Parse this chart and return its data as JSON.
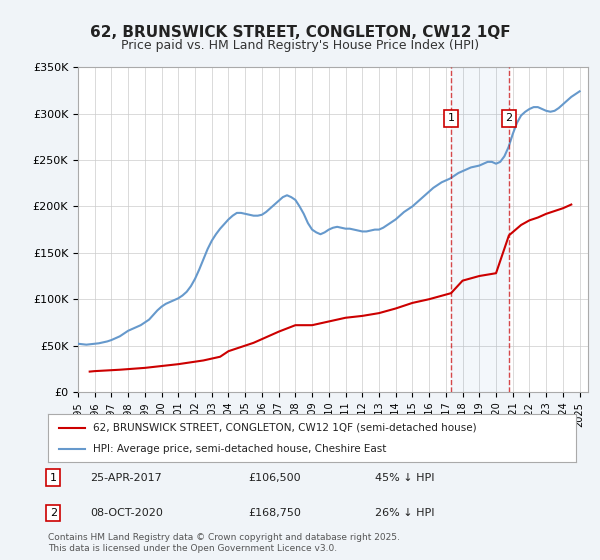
{
  "title": "62, BRUNSWICK STREET, CONGLETON, CW12 1QF",
  "subtitle": "Price paid vs. HM Land Registry's House Price Index (HPI)",
  "ylabel_ticks": [
    "£0",
    "£50K",
    "£100K",
    "£150K",
    "£200K",
    "£250K",
    "£300K",
    "£350K"
  ],
  "ylim": [
    0,
    350000
  ],
  "xlim_start": 1995.0,
  "xlim_end": 2025.5,
  "legend_line1": "62, BRUNSWICK STREET, CONGLETON, CW12 1QF (semi-detached house)",
  "legend_line2": "HPI: Average price, semi-detached house, Cheshire East",
  "marker1_date": "25-APR-2017",
  "marker1_price": "£106,500",
  "marker1_hpi": "45% ↓ HPI",
  "marker1_year": 2017.31,
  "marker2_date": "08-OCT-2020",
  "marker2_price": "£168,750",
  "marker2_hpi": "26% ↓ HPI",
  "marker2_year": 2020.77,
  "red_color": "#cc0000",
  "blue_color": "#6699cc",
  "footer": "Contains HM Land Registry data © Crown copyright and database right 2025.\nThis data is licensed under the Open Government Licence v3.0.",
  "background_color": "#f0f4f8",
  "plot_bg_color": "#ffffff",
  "grid_color": "#cccccc",
  "hpi_data_x": [
    1995.0,
    1995.25,
    1995.5,
    1995.75,
    1996.0,
    1996.25,
    1996.5,
    1996.75,
    1997.0,
    1997.25,
    1997.5,
    1997.75,
    1998.0,
    1998.25,
    1998.5,
    1998.75,
    1999.0,
    1999.25,
    1999.5,
    1999.75,
    2000.0,
    2000.25,
    2000.5,
    2000.75,
    2001.0,
    2001.25,
    2001.5,
    2001.75,
    2002.0,
    2002.25,
    2002.5,
    2002.75,
    2003.0,
    2003.25,
    2003.5,
    2003.75,
    2004.0,
    2004.25,
    2004.5,
    2004.75,
    2005.0,
    2005.25,
    2005.5,
    2005.75,
    2006.0,
    2006.25,
    2006.5,
    2006.75,
    2007.0,
    2007.25,
    2007.5,
    2007.75,
    2008.0,
    2008.25,
    2008.5,
    2008.75,
    2009.0,
    2009.25,
    2009.5,
    2009.75,
    2010.0,
    2010.25,
    2010.5,
    2010.75,
    2011.0,
    2011.25,
    2011.5,
    2011.75,
    2012.0,
    2012.25,
    2012.5,
    2012.75,
    2013.0,
    2013.25,
    2013.5,
    2013.75,
    2014.0,
    2014.25,
    2014.5,
    2014.75,
    2015.0,
    2015.25,
    2015.5,
    2015.75,
    2016.0,
    2016.25,
    2016.5,
    2016.75,
    2017.0,
    2017.25,
    2017.5,
    2017.75,
    2018.0,
    2018.25,
    2018.5,
    2018.75,
    2019.0,
    2019.25,
    2019.5,
    2019.75,
    2020.0,
    2020.25,
    2020.5,
    2020.75,
    2021.0,
    2021.25,
    2021.5,
    2021.75,
    2022.0,
    2022.25,
    2022.5,
    2022.75,
    2023.0,
    2023.25,
    2023.5,
    2023.75,
    2024.0,
    2024.25,
    2024.5,
    2024.75,
    2025.0
  ],
  "hpi_data_y": [
    52000,
    51500,
    51000,
    51500,
    52000,
    52500,
    53500,
    54500,
    56000,
    58000,
    60000,
    63000,
    66000,
    68000,
    70000,
    72000,
    75000,
    78000,
    83000,
    88000,
    92000,
    95000,
    97000,
    99000,
    101000,
    104000,
    108000,
    114000,
    122000,
    132000,
    143000,
    154000,
    163000,
    170000,
    176000,
    181000,
    186000,
    190000,
    193000,
    193000,
    192000,
    191000,
    190000,
    190000,
    191000,
    194000,
    198000,
    202000,
    206000,
    210000,
    212000,
    210000,
    207000,
    200000,
    192000,
    182000,
    175000,
    172000,
    170000,
    172000,
    175000,
    177000,
    178000,
    177000,
    176000,
    176000,
    175000,
    174000,
    173000,
    173000,
    174000,
    175000,
    175000,
    177000,
    180000,
    183000,
    186000,
    190000,
    194000,
    197000,
    200000,
    204000,
    208000,
    212000,
    216000,
    220000,
    223000,
    226000,
    228000,
    230000,
    233000,
    236000,
    238000,
    240000,
    242000,
    243000,
    244000,
    246000,
    248000,
    248000,
    246000,
    248000,
    254000,
    264000,
    278000,
    290000,
    298000,
    302000,
    305000,
    307000,
    307000,
    305000,
    303000,
    302000,
    303000,
    306000,
    310000,
    314000,
    318000,
    321000,
    324000
  ],
  "price_data_x": [
    1995.7,
    1996.0,
    1997.5,
    1999.0,
    2000.0,
    2001.0,
    2002.5,
    2003.5,
    2004.0,
    2004.5,
    2005.0,
    2005.5,
    2006.0,
    2007.0,
    2008.0,
    2009.0,
    2010.0,
    2011.0,
    2012.0,
    2013.0,
    2014.0,
    2015.0,
    2016.0,
    2017.31,
    2018.0,
    2019.0,
    2020.0,
    2020.77,
    2021.5,
    2022.0,
    2022.5,
    2023.0,
    2023.5,
    2024.0,
    2024.5
  ],
  "price_data_y": [
    22000,
    22500,
    24000,
    26000,
    28000,
    30000,
    34000,
    38000,
    44000,
    47000,
    50000,
    53000,
    57000,
    65000,
    72000,
    72000,
    76000,
    80000,
    82000,
    85000,
    90000,
    96000,
    100000,
    106500,
    120000,
    125000,
    128000,
    168750,
    180000,
    185000,
    188000,
    192000,
    195000,
    198000,
    202000
  ]
}
